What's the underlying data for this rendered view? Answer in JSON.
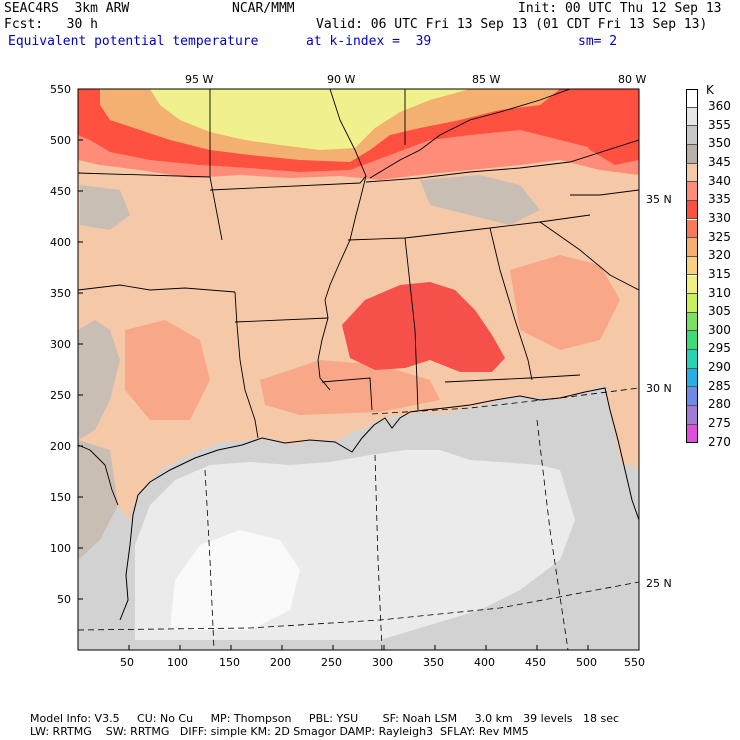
{
  "header": {
    "model": "SEAC4RS  3km ARW",
    "org": "NCAR/MMM",
    "init": "Init: 00 UTC Thu 12 Sep 13",
    "fcst": "Fcst:   30 h",
    "valid": "Valid: 06 UTC Fri 13 Sep 13 (01 CDT Fri 13 Sep 13)",
    "field": "Equivalent potential temperature",
    "level": "at k-index =  39",
    "smooth": "sm= 2"
  },
  "axes": {
    "lon_labels": [
      "95 W",
      "90 W",
      "85 W",
      "80 W"
    ],
    "lat_labels": [
      "35 N",
      "30 N",
      "25 N"
    ],
    "x_ticks": [
      "50",
      "100",
      "150",
      "200",
      "250",
      "300",
      "350",
      "400",
      "450",
      "500",
      "550"
    ],
    "y_ticks": [
      "550",
      "500",
      "450",
      "400",
      "350",
      "300",
      "250",
      "200",
      "150",
      "100",
      "50"
    ]
  },
  "colorbar": {
    "unit": "K",
    "levels": [
      "360",
      "355",
      "350",
      "345",
      "340",
      "335",
      "330",
      "325",
      "320",
      "315",
      "310",
      "305",
      "300",
      "295",
      "290",
      "285",
      "280",
      "275",
      "270"
    ],
    "colors": [
      "#ffffff",
      "#e6e6e6",
      "#c8c8c8",
      "#b8b0a8",
      "#f5c8a8",
      "#ff8c78",
      "#ff5040",
      "#f87858",
      "#f4b070",
      "#fad080",
      "#f0f082",
      "#c8f05a",
      "#7ee060",
      "#3cdc78",
      "#28d2b4",
      "#28b0e6",
      "#6e8ce6",
      "#a07cd2",
      "#dc50dc"
    ]
  },
  "footer": {
    "line1": "Model Info: V3.5     CU: No Cu     MP: Thompson     PBL: YSU       SF: Noah LSM     3.0 km   39 levels   18 sec",
    "line2": "LW: RRTMG    SW: RRTMG   DIFF: simple KM: 2D Smagor DAMP: Rayleigh3  SFLAY: Rev MM5"
  }
}
